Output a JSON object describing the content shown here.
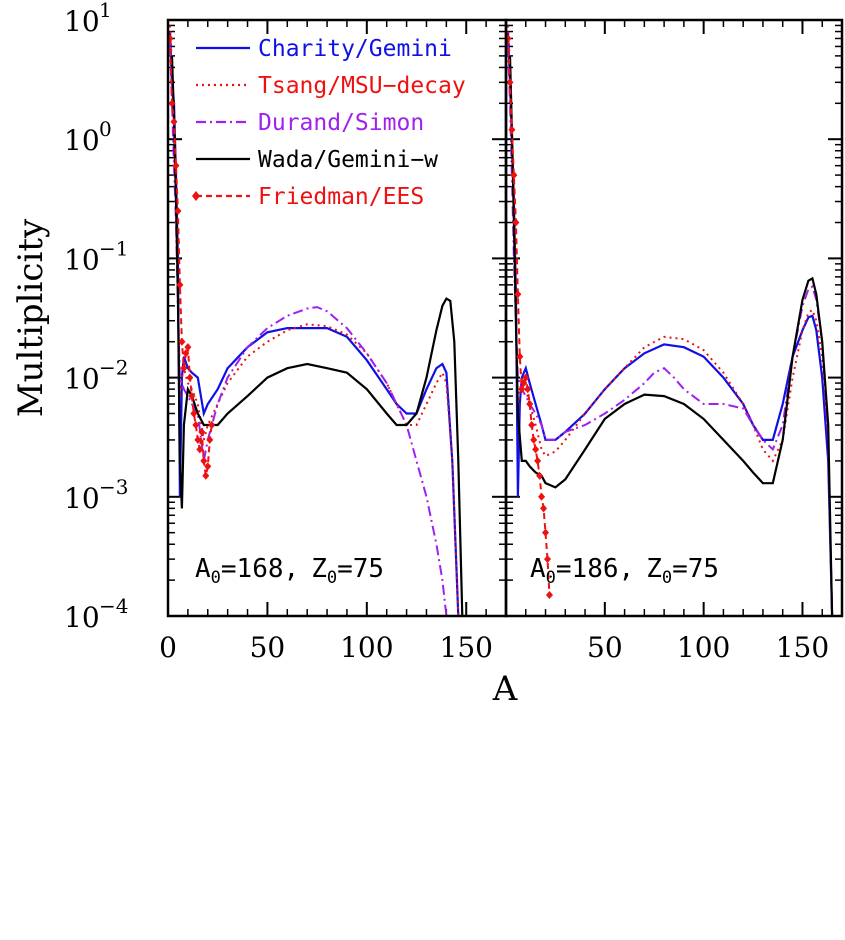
{
  "chart_data": {
    "type": "line",
    "xlabel": "A",
    "ylabel": "Multiplicity",
    "yscale": "log",
    "ylim": [
      0.0001,
      10
    ],
    "y_tick_labels": [
      {
        "base": "10",
        "exp": "1",
        "value": 10
      },
      {
        "base": "10",
        "exp": "0",
        "value": 1
      },
      {
        "base": "10",
        "exp": "−1",
        "value": 0.1
      },
      {
        "base": "10",
        "exp": "−2",
        "value": 0.01
      },
      {
        "base": "10",
        "exp": "−3",
        "value": 0.001
      },
      {
        "base": "10",
        "exp": "−4",
        "value": 0.0001
      }
    ],
    "legend_placement": "top-left of left panel",
    "series_styles": [
      {
        "name": "Charity/Gemini",
        "color": "#1010e6",
        "style": "solid"
      },
      {
        "name": "Tsang/MSU−decay",
        "color": "#ee1111",
        "style": "dotted"
      },
      {
        "name": "Durand/Simon",
        "color": "#a020f0",
        "style": "dashdot"
      },
      {
        "name": "Wada/Gemini−w",
        "color": "#000000",
        "style": "solid"
      },
      {
        "name": "Friedman/EES",
        "color": "#ee1111",
        "style": "dashed-diamond"
      }
    ],
    "panels": [
      {
        "annotation": {
          "a_sub": "0",
          "a_val": "=168,",
          "z_sub": "0",
          "z_val": "=75"
        },
        "xlim": [
          0,
          170
        ],
        "x_ticks": [
          0,
          50,
          100,
          150
        ],
        "series": [
          {
            "name": "Charity/Gemini",
            "x": [
              1,
              2,
              3,
              4,
              5,
              6,
              7,
              8,
              10,
              12,
              15,
              18,
              20,
              25,
              30,
              40,
              50,
              60,
              70,
              80,
              90,
              100,
              110,
              115,
              120,
              125,
              130,
              135,
              138,
              140,
              143,
              146
            ],
            "y": [
              8,
              3,
              2,
              0.5,
              0.1,
              0.001,
              0.01,
              0.015,
              0.012,
              0.011,
              0.01,
              0.005,
              0.006,
              0.008,
              0.012,
              0.018,
              0.024,
              0.026,
              0.026,
              0.026,
              0.022,
              0.014,
              0.008,
              0.006,
              0.005,
              0.005,
              0.008,
              0.012,
              0.013,
              0.011,
              0.002,
              0.0001
            ]
          },
          {
            "name": "Tsang/MSU−decay",
            "x": [
              1,
              2,
              3,
              4,
              5,
              6,
              7,
              8,
              10,
              12,
              15,
              18,
              20,
              25,
              30,
              40,
              50,
              60,
              70,
              80,
              90,
              100,
              110,
              115,
              120,
              125,
              130,
              135,
              138,
              140,
              143,
              146
            ],
            "y": [
              9,
              4,
              1,
              0.3,
              0.04,
              0.007,
              0.01,
              0.012,
              0.009,
              0.008,
              0.006,
              0.003,
              0.004,
              0.006,
              0.009,
              0.015,
              0.02,
              0.025,
              0.028,
              0.027,
              0.023,
              0.016,
              0.009,
              0.006,
              0.004,
              0.004,
              0.006,
              0.009,
              0.011,
              0.009,
              0.002,
              0.0001
            ]
          },
          {
            "name": "Durand/Simon",
            "x": [
              1,
              2,
              3,
              4,
              5,
              6,
              8,
              10,
              12,
              15,
              18,
              20,
              25,
              30,
              40,
              50,
              60,
              70,
              75,
              80,
              90,
              100,
              110,
              115,
              120,
              125,
              130,
              135,
              138,
              140
            ],
            "y": [
              6,
              2,
              0.6,
              0.2,
              0.04,
              0.01,
              0.008,
              0.007,
              0.006,
              0.005,
              0.002,
              0.003,
              0.006,
              0.01,
              0.018,
              0.026,
              0.033,
              0.038,
              0.039,
              0.036,
              0.026,
              0.016,
              0.009,
              0.006,
              0.004,
              0.002,
              0.001,
              0.0004,
              0.0002,
              0.0001
            ]
          },
          {
            "name": "Wada/Gemini−w",
            "x": [
              2,
              3,
              4,
              5,
              6,
              7,
              8,
              10,
              12,
              15,
              18,
              20,
              25,
              30,
              40,
              50,
              60,
              70,
              80,
              90,
              100,
              110,
              115,
              120,
              125,
              130,
              135,
              138,
              140,
              142,
              144,
              146,
              148
            ],
            "y": [
              5,
              1.5,
              0.3,
              0.05,
              0.002,
              0.0008,
              0.004,
              0.008,
              0.007,
              0.005,
              0.004,
              0.004,
              0.004,
              0.005,
              0.007,
              0.01,
              0.012,
              0.013,
              0.012,
              0.011,
              0.008,
              0.005,
              0.004,
              0.004,
              0.005,
              0.01,
              0.025,
              0.04,
              0.046,
              0.044,
              0.02,
              0.002,
              0.0001
            ]
          },
          {
            "name": "Friedman/EES",
            "x": [
              1,
              2,
              3,
              4,
              5,
              6,
              7,
              8,
              9,
              10,
              11,
              12,
              13,
              14,
              15,
              16,
              17,
              18,
              19,
              20,
              21,
              22
            ],
            "y": [
              7,
              2,
              1.4,
              0.6,
              0.25,
              0.06,
              0.02,
              0.012,
              0.016,
              0.018,
              0.01,
              0.007,
              0.005,
              0.004,
              0.003,
              0.0025,
              0.0035,
              0.002,
              0.0015,
              0.0018,
              0.003,
              0.004
            ]
          }
        ]
      },
      {
        "annotation": {
          "a_sub": "0",
          "a_val": "=186,",
          "z_sub": "0",
          "z_val": "=75"
        },
        "xlim": [
          0,
          170
        ],
        "x_ticks": [
          50,
          100,
          150
        ],
        "series": [
          {
            "name": "Charity/Gemini",
            "x": [
              1,
              2,
              3,
              4,
              5,
              6,
              7,
              8,
              10,
              12,
              15,
              18,
              20,
              25,
              30,
              40,
              50,
              60,
              70,
              80,
              90,
              100,
              110,
              120,
              125,
              130,
              135,
              140,
              145,
              150,
              153,
              155,
              157,
              160,
              163,
              165
            ],
            "y": [
              8,
              3,
              1,
              0.3,
              0.05,
              0.001,
              0.006,
              0.01,
              0.012,
              0.009,
              0.006,
              0.004,
              0.003,
              0.003,
              0.0035,
              0.005,
              0.008,
              0.012,
              0.016,
              0.019,
              0.018,
              0.015,
              0.01,
              0.006,
              0.004,
              0.003,
              0.003,
              0.006,
              0.015,
              0.025,
              0.032,
              0.033,
              0.025,
              0.01,
              0.002,
              0.0001
            ]
          },
          {
            "name": "Tsang/MSU−decay",
            "x": [
              1,
              2,
              3,
              4,
              5,
              6,
              7,
              8,
              10,
              12,
              15,
              18,
              20,
              25,
              30,
              40,
              50,
              60,
              70,
              80,
              90,
              100,
              110,
              120,
              125,
              130,
              135,
              140,
              145,
              150,
              153,
              155,
              157,
              160,
              163,
              165
            ],
            "y": [
              9,
              4,
              1,
              0.3,
              0.04,
              0.005,
              0.008,
              0.009,
              0.008,
              0.006,
              0.004,
              0.0025,
              0.0022,
              0.0024,
              0.003,
              0.005,
              0.008,
              0.012,
              0.018,
              0.022,
              0.021,
              0.017,
              0.011,
              0.006,
              0.004,
              0.0025,
              0.002,
              0.003,
              0.01,
              0.025,
              0.035,
              0.037,
              0.03,
              0.015,
              0.003,
              0.0001
            ]
          },
          {
            "name": "Durand/Simon",
            "x": [
              1,
              2,
              3,
              4,
              5,
              6,
              8,
              10,
              12,
              15,
              18,
              20,
              25,
              30,
              40,
              50,
              60,
              70,
              75,
              80,
              85,
              90,
              100,
              110,
              120,
              125,
              130,
              135,
              140,
              145,
              150,
              153,
              155,
              157,
              160,
              163,
              165
            ],
            "y": [
              6,
              2,
              0.5,
              0.1,
              0.03,
              0.01,
              0.008,
              0.007,
              0.006,
              0.005,
              0.004,
              0.003,
              0.003,
              0.0035,
              0.004,
              0.005,
              0.0065,
              0.009,
              0.011,
              0.012,
              0.01,
              0.008,
              0.006,
              0.006,
              0.0055,
              0.004,
              0.003,
              0.0025,
              0.004,
              0.015,
              0.04,
              0.055,
              0.058,
              0.045,
              0.02,
              0.003,
              0.0001
            ]
          },
          {
            "name": "Wada/Gemini−w",
            "x": [
              2,
              3,
              4,
              5,
              6,
              8,
              10,
              12,
              15,
              18,
              20,
              25,
              30,
              40,
              50,
              60,
              70,
              80,
              90,
              100,
              110,
              120,
              125,
              130,
              135,
              140,
              145,
              150,
              153,
              155,
              157,
              160,
              163,
              165
            ],
            "y": [
              5,
              1.2,
              0.2,
              0.03,
              0.005,
              0.002,
              0.002,
              0.0018,
              0.0016,
              0.0015,
              0.0013,
              0.0012,
              0.0014,
              0.0025,
              0.0045,
              0.006,
              0.0072,
              0.007,
              0.006,
              0.0045,
              0.003,
              0.002,
              0.0016,
              0.0013,
              0.0013,
              0.003,
              0.015,
              0.045,
              0.065,
              0.068,
              0.05,
              0.02,
              0.004,
              0.0001
            ]
          },
          {
            "name": "Friedman/EES",
            "x": [
              1,
              2,
              3,
              4,
              5,
              6,
              7,
              8,
              9,
              10,
              11,
              12,
              13,
              14,
              15,
              16,
              17,
              18,
              19,
              20,
              21,
              22
            ],
            "y": [
              7,
              3,
              1.2,
              0.5,
              0.2,
              0.05,
              0.015,
              0.008,
              0.009,
              0.01,
              0.008,
              0.006,
              0.004,
              0.003,
              0.0025,
              0.002,
              0.0015,
              0.001,
              0.0008,
              0.0005,
              0.0003,
              0.00015
            ]
          }
        ]
      }
    ]
  }
}
